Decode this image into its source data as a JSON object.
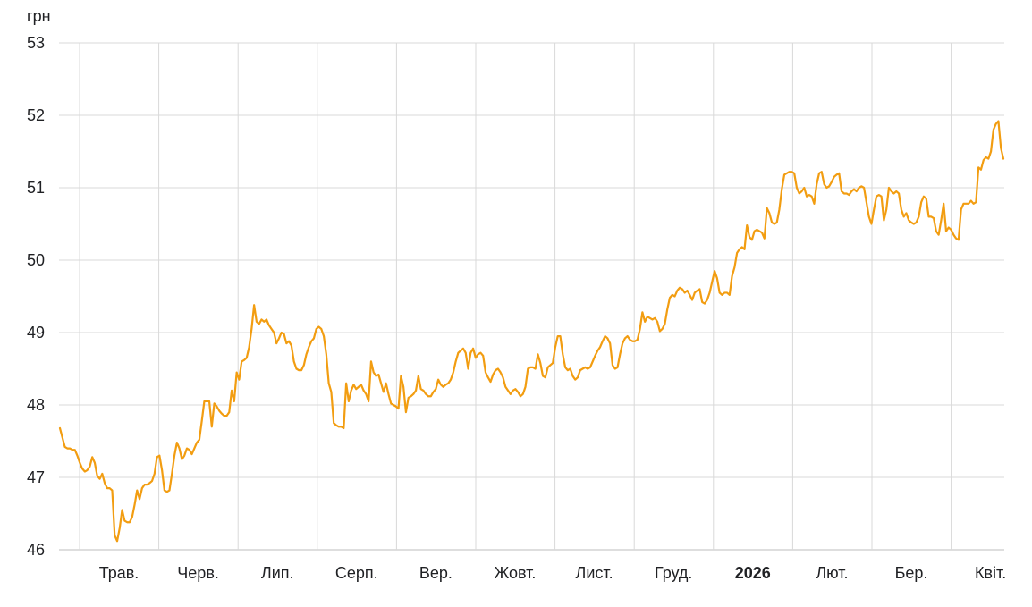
{
  "colors": {
    "line": "#f29d11",
    "grid": "#d9d9d9",
    "text": "#202124"
  },
  "chart_data": {
    "type": "line",
    "title": "",
    "ylabel": "грн",
    "ylim": [
      46,
      53
    ],
    "yticks": [
      46,
      47,
      48,
      49,
      50,
      51,
      52,
      53
    ],
    "grid": true,
    "xlabels": [
      {
        "label": "Трав.",
        "bold": false
      },
      {
        "label": "Черв.",
        "bold": false
      },
      {
        "label": "Лип.",
        "bold": false
      },
      {
        "label": "Серп.",
        "bold": false
      },
      {
        "label": "Вер.",
        "bold": false
      },
      {
        "label": "Жовт.",
        "bold": false
      },
      {
        "label": "Лист.",
        "bold": false
      },
      {
        "label": "Груд.",
        "bold": false
      },
      {
        "label": "2026",
        "bold": true
      },
      {
        "label": "Лют.",
        "bold": false
      },
      {
        "label": "Бер.",
        "bold": false
      },
      {
        "label": "Квіт.",
        "bold": false
      }
    ],
    "series": [
      {
        "x_start": 0,
        "x_step": 1,
        "values": [
          47.68,
          47.55,
          47.42,
          47.4,
          47.4,
          47.38,
          47.38,
          47.3,
          47.2,
          47.12,
          47.08,
          47.1,
          47.15,
          47.28,
          47.2,
          47.02,
          46.98,
          47.05,
          46.92,
          46.85,
          46.85,
          46.82,
          46.2,
          46.12,
          46.3,
          46.55,
          46.4,
          46.38,
          46.38,
          46.45,
          46.62,
          46.82,
          46.7,
          46.85,
          46.9,
          46.9,
          46.92,
          46.95,
          47.05,
          47.28,
          47.3,
          47.1,
          46.82,
          46.8,
          46.82,
          47.05,
          47.3,
          47.48,
          47.4,
          47.25,
          47.3,
          47.4,
          47.38,
          47.32,
          47.4,
          47.48,
          47.52,
          47.78,
          48.05,
          48.05,
          48.05,
          47.7,
          48.02,
          47.98,
          47.92,
          47.88,
          47.85,
          47.85,
          47.9,
          48.2,
          48.05,
          48.45,
          48.35,
          48.6,
          48.62,
          48.65,
          48.8,
          49.05,
          49.38,
          49.15,
          49.12,
          49.18,
          49.15,
          49.18,
          49.1,
          49.05,
          49.0,
          48.85,
          48.92,
          49.0,
          48.98,
          48.85,
          48.88,
          48.82,
          48.6,
          48.5,
          48.48,
          48.48,
          48.55,
          48.7,
          48.8,
          48.88,
          48.92,
          49.05,
          49.08,
          49.05,
          48.95,
          48.7,
          48.3,
          48.18,
          47.75,
          47.72,
          47.7,
          47.7,
          47.68,
          48.3,
          48.05,
          48.2,
          48.28,
          48.22,
          48.25,
          48.28,
          48.2,
          48.15,
          48.05,
          48.6,
          48.45,
          48.4,
          48.42,
          48.3,
          48.18,
          48.3,
          48.15,
          48.02,
          48.0,
          47.98,
          47.95,
          48.4,
          48.25,
          47.9,
          48.1,
          48.12,
          48.15,
          48.2,
          48.4,
          48.22,
          48.2,
          48.15,
          48.12,
          48.12,
          48.18,
          48.22,
          48.35,
          48.28,
          48.25,
          48.28,
          48.3,
          48.35,
          48.45,
          48.6,
          48.72,
          48.75,
          48.78,
          48.72,
          48.5,
          48.72,
          48.78,
          48.65,
          48.7,
          48.72,
          48.68,
          48.45,
          48.38,
          48.32,
          48.42,
          48.48,
          48.5,
          48.45,
          48.38,
          48.25,
          48.2,
          48.15,
          48.2,
          48.22,
          48.18,
          48.12,
          48.15,
          48.25,
          48.5,
          48.52,
          48.52,
          48.5,
          48.7,
          48.58,
          48.4,
          48.38,
          48.52,
          48.55,
          48.58,
          48.8,
          48.95,
          48.95,
          48.7,
          48.52,
          48.48,
          48.5,
          48.4,
          48.35,
          48.38,
          48.48,
          48.5,
          48.52,
          48.5,
          48.52,
          48.6,
          48.68,
          48.75,
          48.8,
          48.88,
          48.95,
          48.92,
          48.85,
          48.55,
          48.5,
          48.52,
          48.7,
          48.85,
          48.92,
          48.95,
          48.9,
          48.88,
          48.88,
          48.9,
          49.05,
          49.28,
          49.15,
          49.22,
          49.2,
          49.18,
          49.2,
          49.15,
          49.02,
          49.05,
          49.12,
          49.32,
          49.48,
          49.52,
          49.5,
          49.58,
          49.62,
          49.6,
          49.55,
          49.58,
          49.52,
          49.45,
          49.55,
          49.58,
          49.6,
          49.42,
          49.4,
          49.45,
          49.55,
          49.7,
          49.85,
          49.75,
          49.55,
          49.52,
          49.55,
          49.55,
          49.52,
          49.78,
          49.9,
          50.1,
          50.15,
          50.18,
          50.15,
          50.48,
          50.32,
          50.28,
          50.4,
          50.42,
          50.4,
          50.38,
          50.3,
          50.72,
          50.65,
          50.52,
          50.5,
          50.52,
          50.7,
          50.98,
          51.18,
          51.2,
          51.22,
          51.22,
          51.2,
          51.0,
          50.92,
          50.95,
          51.0,
          50.88,
          50.9,
          50.88,
          50.78,
          51.05,
          51.2,
          51.22,
          51.05,
          51.0,
          51.02,
          51.08,
          51.15,
          51.18,
          51.2,
          50.95,
          50.92,
          50.92,
          50.9,
          50.95,
          50.98,
          50.95,
          51.0,
          51.02,
          51.0,
          50.8,
          50.6,
          50.5,
          50.7,
          50.88,
          50.9,
          50.88,
          50.55,
          50.7,
          51.0,
          50.95,
          50.92,
          50.95,
          50.92,
          50.7,
          50.6,
          50.65,
          50.55,
          50.52,
          50.5,
          50.52,
          50.6,
          50.8,
          50.88,
          50.85,
          50.6,
          50.6,
          50.58,
          50.4,
          50.35,
          50.55,
          50.78,
          50.4,
          50.45,
          50.42,
          50.35,
          50.3,
          50.28,
          50.7,
          50.78,
          50.78,
          50.78,
          50.82,
          50.78,
          50.8,
          51.28,
          51.25,
          51.38,
          51.42,
          51.4,
          51.5,
          51.8,
          51.88,
          51.92,
          51.55,
          51.4
        ]
      }
    ]
  }
}
